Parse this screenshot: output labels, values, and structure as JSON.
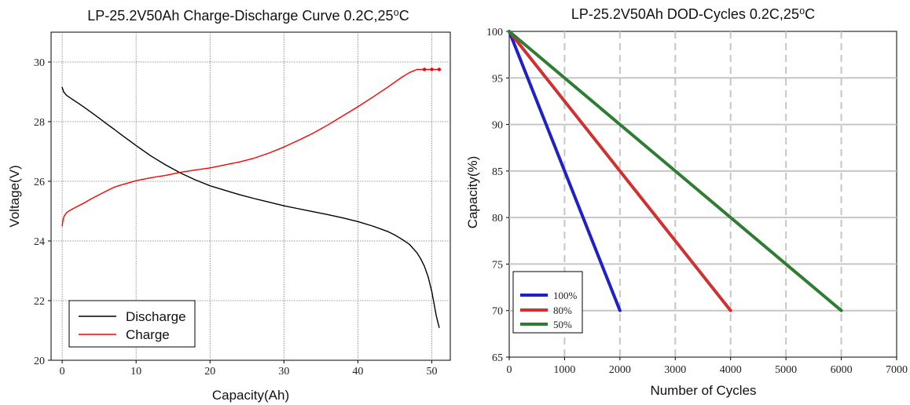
{
  "chart_data": [
    {
      "type": "line",
      "title": "LP-25.2V50Ah Charge-Discharge Curve  0.2C,25⁰C",
      "xlabel": "Capacity(Ah)",
      "ylabel": "Voltage(V)",
      "xlim": [
        -1.5,
        52.5
      ],
      "ylim": [
        20,
        31
      ],
      "xticks": [
        0,
        10,
        20,
        30,
        40,
        50
      ],
      "yticks": [
        20,
        22,
        24,
        26,
        28,
        30
      ],
      "grid": true,
      "legend_position": "bottom-left",
      "series": [
        {
          "name": "Discharge",
          "color": "#000000",
          "x": [
            0,
            0.2,
            0.6,
            1.2,
            2,
            3,
            4,
            5,
            6,
            7,
            8,
            9,
            10,
            12,
            14,
            16,
            18,
            20,
            22,
            24,
            26,
            28,
            30,
            32,
            34,
            36,
            38,
            40,
            42,
            44,
            45,
            46,
            47,
            48,
            48.5,
            49,
            49.5,
            50,
            50.3,
            50.6,
            50.9,
            51
          ],
          "y": [
            29.15,
            29.0,
            28.88,
            28.78,
            28.65,
            28.48,
            28.3,
            28.12,
            27.93,
            27.75,
            27.56,
            27.38,
            27.2,
            26.85,
            26.55,
            26.28,
            26.05,
            25.85,
            25.7,
            25.55,
            25.42,
            25.3,
            25.18,
            25.08,
            24.98,
            24.88,
            24.77,
            24.65,
            24.5,
            24.32,
            24.2,
            24.05,
            23.88,
            23.6,
            23.4,
            23.15,
            22.8,
            22.3,
            21.9,
            21.5,
            21.2,
            21.1
          ]
        },
        {
          "name": "Charge",
          "color": "#ff0000",
          "x": [
            0,
            0.1,
            0.3,
            0.6,
            1,
            2,
            3,
            4,
            5,
            6,
            7,
            8,
            9,
            10,
            12,
            14,
            16,
            18,
            20,
            22,
            24,
            26,
            28,
            30,
            32,
            34,
            36,
            38,
            40,
            42,
            44,
            46,
            47,
            48,
            49,
            50,
            51
          ],
          "y": [
            24.5,
            24.7,
            24.85,
            24.95,
            25.02,
            25.15,
            25.28,
            25.42,
            25.55,
            25.68,
            25.8,
            25.88,
            25.95,
            26.02,
            26.12,
            26.2,
            26.3,
            26.38,
            26.45,
            26.55,
            26.65,
            26.78,
            26.95,
            27.15,
            27.38,
            27.62,
            27.9,
            28.2,
            28.5,
            28.82,
            29.15,
            29.5,
            29.65,
            29.75,
            29.75,
            29.75,
            29.75
          ]
        }
      ]
    },
    {
      "type": "line",
      "title": "LP-25.2V50Ah DOD-Cycles  0.2C,25⁰C",
      "xlabel": "Number of Cycles",
      "ylabel": "Capacity(%)",
      "xlim": [
        0,
        7000
      ],
      "ylim": [
        65,
        100
      ],
      "xticks": [
        0,
        1000,
        2000,
        3000,
        4000,
        5000,
        6000,
        7000
      ],
      "yticks": [
        65,
        70,
        75,
        80,
        85,
        90,
        95,
        100
      ],
      "grid": true,
      "legend_position": "bottom-left",
      "series": [
        {
          "name": "100%",
          "color": "#2020c8",
          "x": [
            0,
            2000
          ],
          "y": [
            100,
            70
          ]
        },
        {
          "name": "80%",
          "color": "#d03030",
          "x": [
            0,
            4000
          ],
          "y": [
            100,
            70
          ]
        },
        {
          "name": "50%",
          "color": "#2e7d32",
          "x": [
            0,
            6000
          ],
          "y": [
            100,
            70
          ]
        }
      ]
    }
  ]
}
